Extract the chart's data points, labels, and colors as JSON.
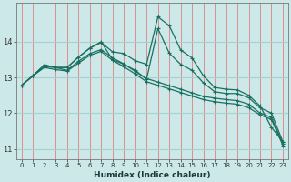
{
  "xlabel": "Humidex (Indice chaleur)",
  "bg_color": "#cce8e8",
  "grid_color_v": "#e08080",
  "grid_color_h": "#a8d0d0",
  "line_color": "#1a7060",
  "x_values": [
    0,
    1,
    2,
    3,
    4,
    5,
    6,
    7,
    8,
    9,
    10,
    11,
    12,
    13,
    14,
    15,
    16,
    17,
    18,
    19,
    20,
    21,
    22,
    23
  ],
  "series1": [
    12.78,
    13.05,
    13.35,
    13.28,
    13.28,
    13.57,
    13.82,
    13.98,
    13.72,
    13.67,
    13.47,
    13.37,
    14.7,
    14.45,
    13.77,
    13.55,
    13.05,
    12.72,
    12.67,
    12.65,
    12.5,
    12.2,
    11.6,
    11.2
  ],
  "series2": [
    12.78,
    13.05,
    13.35,
    13.28,
    13.28,
    13.57,
    13.82,
    14.0,
    13.5,
    13.37,
    13.2,
    12.95,
    14.37,
    13.68,
    13.37,
    13.2,
    12.85,
    12.6,
    12.55,
    12.55,
    12.43,
    12.15,
    12.0,
    11.2
  ],
  "series3": [
    12.78,
    13.05,
    13.3,
    13.28,
    13.2,
    13.45,
    13.67,
    13.78,
    13.55,
    13.38,
    13.17,
    12.97,
    12.87,
    12.77,
    12.67,
    12.57,
    12.47,
    12.42,
    12.38,
    12.35,
    12.25,
    12.0,
    11.88,
    11.15
  ],
  "series4": [
    12.78,
    13.05,
    13.28,
    13.22,
    13.18,
    13.4,
    13.62,
    13.73,
    13.48,
    13.3,
    13.1,
    12.88,
    12.78,
    12.68,
    12.58,
    12.48,
    12.38,
    12.32,
    12.28,
    12.25,
    12.15,
    11.95,
    11.82,
    11.1
  ],
  "ylim": [
    10.7,
    15.1
  ],
  "yticks": [
    11,
    12,
    13,
    14
  ],
  "xticks": [
    0,
    1,
    2,
    3,
    4,
    5,
    6,
    7,
    8,
    9,
    10,
    11,
    12,
    13,
    14,
    15,
    16,
    17,
    18,
    19,
    20,
    21,
    22,
    23
  ]
}
